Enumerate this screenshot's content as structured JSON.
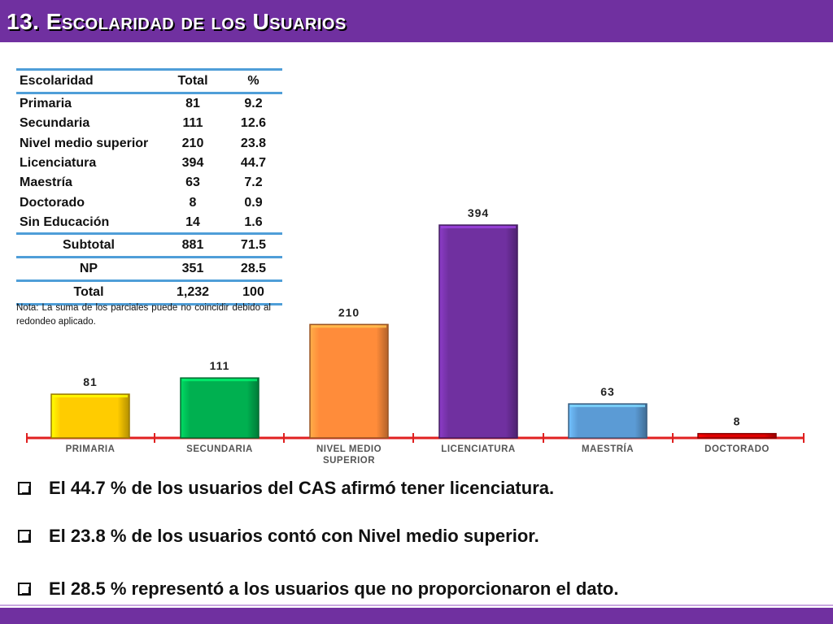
{
  "header": {
    "title": "13. Escolaridad de los Usuarios",
    "color": "#7030a0"
  },
  "table": {
    "headers": [
      "Escolaridad",
      "Total",
      "%"
    ],
    "rows": [
      {
        "label": "Primaria",
        "total": "81",
        "pct": "9.2"
      },
      {
        "label": "Secundaria",
        "total": "111",
        "pct": "12.6"
      },
      {
        "label": "Nivel medio superior",
        "total": "210",
        "pct": "23.8"
      },
      {
        "label": "Licenciatura",
        "total": "394",
        "pct": "44.7"
      },
      {
        "label": "Maestría",
        "total": "63",
        "pct": "7.2"
      },
      {
        "label": "Doctorado",
        "total": "8",
        "pct": "0.9"
      },
      {
        "label": "Sin Educación",
        "total": "14",
        "pct": "1.6"
      }
    ],
    "subtotal": {
      "label": "Subtotal",
      "total": "881",
      "pct": "71.5"
    },
    "np": {
      "label": "NP",
      "total": "351",
      "pct": "28.5"
    },
    "total": {
      "label": "Total",
      "total": "1,232",
      "pct": "100"
    },
    "border_color": "#4f9ed8"
  },
  "note": "Nota: La suma de los parciales puede no coincidir debido al redondeo aplicado.",
  "chart_data": {
    "type": "bar",
    "categories": [
      "PRIMARIA",
      "SECUNDARIA",
      "NIVEL MEDIO SUPERIOR",
      "LICENCIATURA",
      "MAESTRÍA",
      "DOCTORADO"
    ],
    "values": [
      81,
      111,
      210,
      394,
      63,
      8
    ],
    "colors": [
      "#ffcc00",
      "#00b050",
      "#ff8c3a",
      "#7030a0",
      "#5b9bd5",
      "#e00000"
    ],
    "axis_color": "#e02020",
    "ylim": [
      0,
      400
    ],
    "grid": false,
    "title": "",
    "xlabel": "",
    "ylabel": ""
  },
  "bullets": [
    "El 44.7 % de los usuarios del CAS afirmó tener licenciatura.",
    "El 23.8 % de los usuarios contó con Nivel medio superior.",
    "El  28.5 % representó a los usuarios que no proporcionaron el dato."
  ]
}
